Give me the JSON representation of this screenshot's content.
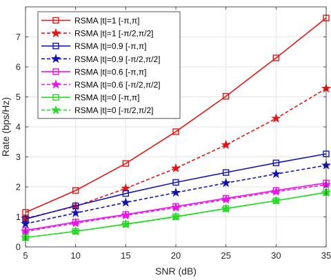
{
  "chart_data": {
    "type": "line",
    "title": "",
    "xlabel": "SNR (dB)",
    "ylabel": "Rate (bps/Hz)",
    "xlim": [
      5,
      35
    ],
    "ylim": [
      0,
      8
    ],
    "x_ticks": [
      5,
      10,
      15,
      20,
      25,
      30,
      35
    ],
    "y_ticks": [
      0,
      1,
      2,
      3,
      4,
      5,
      6,
      7
    ],
    "grid": true,
    "legend_position": "top-left",
    "x": [
      5,
      10,
      15,
      20,
      25,
      30,
      35
    ],
    "series": [
      {
        "name": "RSMA |t|=1 [-π,π]",
        "color": "#ee1111",
        "linestyle": "solid",
        "marker": "square",
        "values": [
          1.15,
          1.88,
          2.78,
          3.84,
          5.02,
          6.3,
          7.63
        ]
      },
      {
        "name": "RSMA |t|=1 [-π/2,π/2]",
        "color": "#ee1111",
        "linestyle": "dashed",
        "marker": "star",
        "values": [
          0.95,
          1.35,
          1.95,
          2.62,
          3.4,
          4.28,
          5.28
        ]
      },
      {
        "name": "RSMA |t|=0.9 [-π,π]",
        "color": "#1111bb",
        "linestyle": "solid",
        "marker": "square",
        "values": [
          0.93,
          1.37,
          1.78,
          2.15,
          2.48,
          2.8,
          3.1
        ]
      },
      {
        "name": "RSMA |t|=0.9 [-π/2,π/2]",
        "color": "#1111bb",
        "linestyle": "dashed",
        "marker": "star",
        "values": [
          0.77,
          1.13,
          1.48,
          1.81,
          2.13,
          2.43,
          2.72
        ]
      },
      {
        "name": "RSMA |t|=0.6 [-π,π]",
        "color": "#ee11ee",
        "linestyle": "solid",
        "marker": "square",
        "values": [
          0.55,
          0.83,
          1.08,
          1.35,
          1.62,
          1.88,
          2.13
        ]
      },
      {
        "name": "RSMA |t|=0.6 [-π/2,π/2]",
        "color": "#ee11ee",
        "linestyle": "dashed",
        "marker": "star",
        "values": [
          0.52,
          0.79,
          1.05,
          1.31,
          1.58,
          1.84,
          2.07
        ]
      },
      {
        "name": "RSMA |t|=0 [-π,π]",
        "color": "#22dd22",
        "linestyle": "solid",
        "marker": "square",
        "values": [
          0.31,
          0.52,
          0.76,
          1.01,
          1.28,
          1.54,
          1.82
        ]
      },
      {
        "name": "RSMA |t|=0 [-π/2,π/2]",
        "color": "#22dd22",
        "linestyle": "dashed",
        "marker": "star",
        "values": [
          0.31,
          0.52,
          0.75,
          1.0,
          1.27,
          1.54,
          1.81
        ]
      }
    ]
  }
}
